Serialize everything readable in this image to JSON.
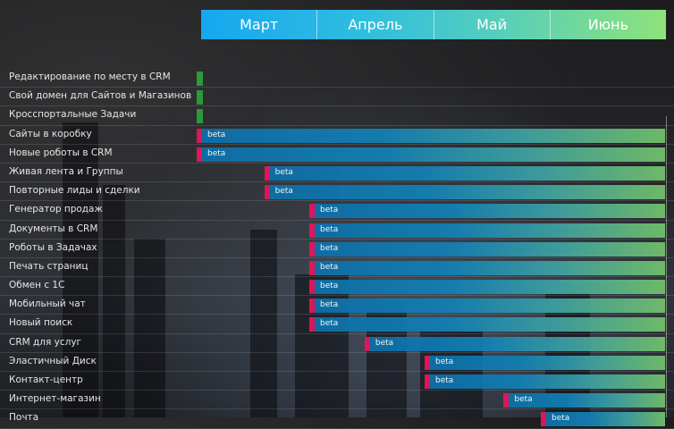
{
  "months": [
    "Март",
    "Апрель",
    "Май",
    "Июнь"
  ],
  "colors": {
    "green_marker": "#2a9a3a",
    "bar_start": "#e8145a",
    "bar_gradient_start": "#0d6fa8",
    "bar_gradient_end": "#72c06a"
  },
  "rows": [
    {
      "label": "Редактирование  по месту в CRM",
      "type": "green",
      "badge": ""
    },
    {
      "label": "Свой домен для Сайтов  и Магазинов",
      "type": "green",
      "badge": ""
    },
    {
      "label": "Кросспортальные  Задачи",
      "type": "green",
      "badge": ""
    },
    {
      "label": "Сайты в коробку",
      "type": "bar",
      "badge": "beta",
      "start_month": 0,
      "start_frac": 0.0
    },
    {
      "label": "Новые роботы в CRM",
      "type": "bar",
      "badge": "beta",
      "start_month": 0,
      "start_frac": 0.0
    },
    {
      "label": "Живая лента и Группы",
      "type": "bar",
      "badge": "beta",
      "start_month": 0,
      "start_frac": 0.6
    },
    {
      "label": "Повторные  лиды и сделки",
      "type": "bar",
      "badge": "beta",
      "start_month": 0,
      "start_frac": 0.6
    },
    {
      "label": "Генератор продаж",
      "type": "bar",
      "badge": "beta",
      "start_month": 1,
      "start_frac": 0.0
    },
    {
      "label": "Документы в CRM",
      "type": "bar",
      "badge": "beta",
      "start_month": 1,
      "start_frac": 0.0
    },
    {
      "label": "Роботы в Задачах",
      "type": "bar",
      "badge": "beta",
      "start_month": 1,
      "start_frac": 0.0
    },
    {
      "label": "Печать страниц",
      "type": "bar",
      "badge": "beta",
      "start_month": 1,
      "start_frac": 0.0
    },
    {
      "label": "Обмен с 1С",
      "type": "bar",
      "badge": "beta",
      "start_month": 1,
      "start_frac": 0.0
    },
    {
      "label": "Мобильный  чат",
      "type": "bar",
      "badge": "beta",
      "start_month": 1,
      "start_frac": 0.0
    },
    {
      "label": "Новый поиск",
      "type": "bar",
      "badge": "beta",
      "start_month": 1,
      "start_frac": 0.0
    },
    {
      "label": "CRM для услуг",
      "type": "bar",
      "badge": "beta",
      "start_month": 1,
      "start_frac": 0.48
    },
    {
      "label": "Эластичный  Диск",
      "type": "bar",
      "badge": "beta",
      "start_month": 2,
      "start_frac": 0.0
    },
    {
      "label": "Контакт-центр",
      "type": "bar",
      "badge": "beta",
      "start_month": 2,
      "start_frac": 0.0
    },
    {
      "label": "Интернет-магазин",
      "type": "bar",
      "badge": "beta",
      "start_month": 2,
      "start_frac": 0.68
    },
    {
      "label": "Почта",
      "type": "bar",
      "badge": "beta",
      "start_month": 3,
      "start_frac": 0.0
    }
  ]
}
